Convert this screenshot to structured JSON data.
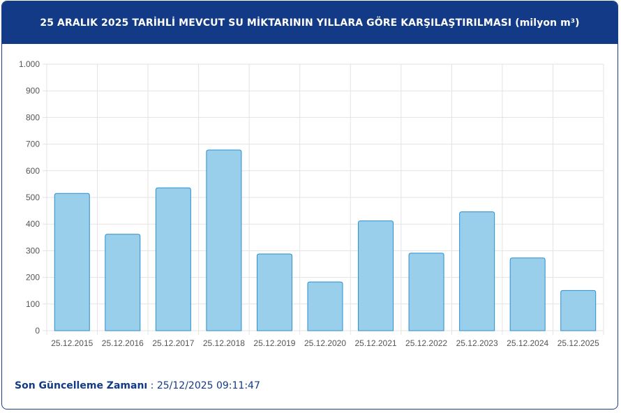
{
  "header": {
    "title": "25 ARALIK 2025 TARİHLİ MEVCUT SU MİKTARININ YILLARA GÖRE KARŞILAŞTIRILMASI (milyon m³)"
  },
  "footer": {
    "label": "Son Güncelleme Zamanı",
    "separator": " : ",
    "value": "25/12/2025 09:11:47"
  },
  "colors": {
    "header_bg": "#123a86",
    "bar_fill": "#9acfec",
    "bar_stroke": "#2a8fcf",
    "grid": "#e3e3e3"
  },
  "chart_data": {
    "type": "bar",
    "categories": [
      "25.12.2015",
      "25.12.2016",
      "25.12.2017",
      "25.12.2018",
      "25.12.2019",
      "25.12.2020",
      "25.12.2021",
      "25.12.2022",
      "25.12.2023",
      "25.12.2024",
      "25.12.2025"
    ],
    "values": [
      515,
      362,
      536,
      678,
      288,
      183,
      412,
      291,
      446,
      273,
      151
    ],
    "ylim": [
      0,
      1000
    ],
    "yticks": [
      0,
      100,
      200,
      300,
      400,
      500,
      600,
      700,
      800,
      900,
      1000
    ],
    "ytick_labels": [
      "0",
      "100",
      "200",
      "300",
      "400",
      "500",
      "600",
      "700",
      "800",
      "900",
      "1.000"
    ],
    "grid": true,
    "legend": "none"
  }
}
